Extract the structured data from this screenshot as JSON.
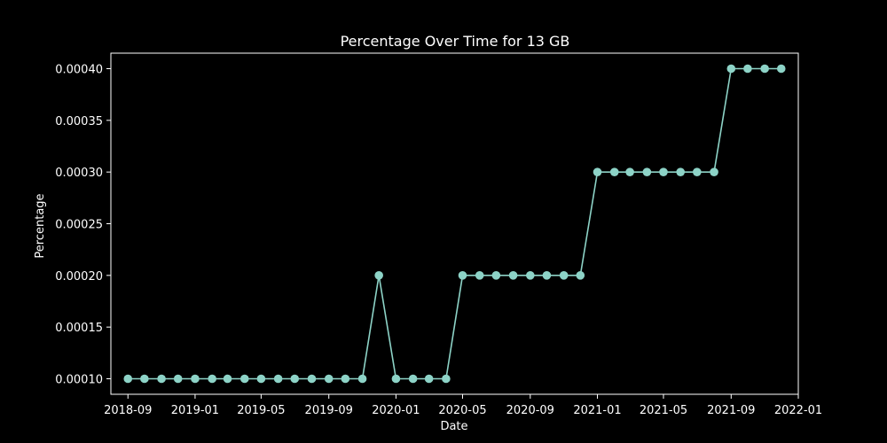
{
  "chart_data": {
    "type": "line",
    "title": "Percentage Over Time for 13 GB",
    "xlabel": "Date",
    "ylabel": "Percentage",
    "x_axis_type": "date",
    "xlim": [
      "2018-08-01",
      "2022-01-01"
    ],
    "ylim": [
      8.5e-05,
      0.000415
    ],
    "x_ticks": [
      {
        "date": "2018-09-01",
        "label": "2018-09"
      },
      {
        "date": "2019-01-01",
        "label": "2019-01"
      },
      {
        "date": "2019-05-01",
        "label": "2019-05"
      },
      {
        "date": "2019-09-01",
        "label": "2019-09"
      },
      {
        "date": "2020-01-01",
        "label": "2020-01"
      },
      {
        "date": "2020-05-01",
        "label": "2020-05"
      },
      {
        "date": "2020-09-01",
        "label": "2020-09"
      },
      {
        "date": "2021-01-01",
        "label": "2021-01"
      },
      {
        "date": "2021-05-01",
        "label": "2021-05"
      },
      {
        "date": "2021-09-01",
        "label": "2021-09"
      },
      {
        "date": "2022-01-01",
        "label": "2022-01"
      }
    ],
    "y_ticks": [
      {
        "value": 0.0001,
        "label": "0.00010"
      },
      {
        "value": 0.00015,
        "label": "0.00015"
      },
      {
        "value": 0.0002,
        "label": "0.00020"
      },
      {
        "value": 0.00025,
        "label": "0.00025"
      },
      {
        "value": 0.0003,
        "label": "0.00030"
      },
      {
        "value": 0.00035,
        "label": "0.00035"
      },
      {
        "value": 0.0004,
        "label": "0.00040"
      }
    ],
    "grid": false,
    "legend": "none",
    "series": [
      {
        "color": "#8dd3c7",
        "marker": "circle",
        "points": [
          {
            "x": "2018-09-01",
            "y": 0.0001
          },
          {
            "x": "2018-10-01",
            "y": 0.0001
          },
          {
            "x": "2018-11-01",
            "y": 0.0001
          },
          {
            "x": "2018-12-01",
            "y": 0.0001
          },
          {
            "x": "2019-01-01",
            "y": 0.0001
          },
          {
            "x": "2019-02-01",
            "y": 0.0001
          },
          {
            "x": "2019-03-01",
            "y": 0.0001
          },
          {
            "x": "2019-04-01",
            "y": 0.0001
          },
          {
            "x": "2019-05-01",
            "y": 0.0001
          },
          {
            "x": "2019-06-01",
            "y": 0.0001
          },
          {
            "x": "2019-07-01",
            "y": 0.0001
          },
          {
            "x": "2019-08-01",
            "y": 0.0001
          },
          {
            "x": "2019-09-01",
            "y": 0.0001
          },
          {
            "x": "2019-10-01",
            "y": 0.0001
          },
          {
            "x": "2019-11-01",
            "y": 0.0001
          },
          {
            "x": "2019-12-01",
            "y": 0.0002
          },
          {
            "x": "2020-01-01",
            "y": 0.0001
          },
          {
            "x": "2020-02-01",
            "y": 0.0001
          },
          {
            "x": "2020-03-01",
            "y": 0.0001
          },
          {
            "x": "2020-04-01",
            "y": 0.0001
          },
          {
            "x": "2020-05-01",
            "y": 0.0002
          },
          {
            "x": "2020-06-01",
            "y": 0.0002
          },
          {
            "x": "2020-07-01",
            "y": 0.0002
          },
          {
            "x": "2020-08-01",
            "y": 0.0002
          },
          {
            "x": "2020-09-01",
            "y": 0.0002
          },
          {
            "x": "2020-10-01",
            "y": 0.0002
          },
          {
            "x": "2020-11-01",
            "y": 0.0002
          },
          {
            "x": "2020-12-01",
            "y": 0.0002
          },
          {
            "x": "2021-01-01",
            "y": 0.0003
          },
          {
            "x": "2021-02-01",
            "y": 0.0003
          },
          {
            "x": "2021-03-01",
            "y": 0.0003
          },
          {
            "x": "2021-04-01",
            "y": 0.0003
          },
          {
            "x": "2021-05-01",
            "y": 0.0003
          },
          {
            "x": "2021-06-01",
            "y": 0.0003
          },
          {
            "x": "2021-07-01",
            "y": 0.0003
          },
          {
            "x": "2021-08-01",
            "y": 0.0003
          },
          {
            "x": "2021-09-01",
            "y": 0.0004
          },
          {
            "x": "2021-10-01",
            "y": 0.0004
          },
          {
            "x": "2021-11-01",
            "y": 0.0004
          },
          {
            "x": "2021-12-01",
            "y": 0.0004
          }
        ]
      }
    ],
    "colors": {
      "background": "#000000",
      "foreground": "#ffffff",
      "line": "#8dd3c7"
    }
  }
}
